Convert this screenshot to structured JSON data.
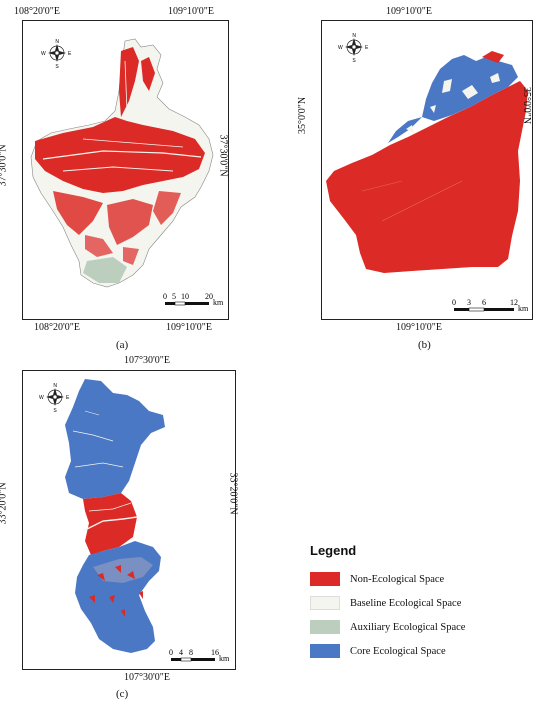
{
  "panels": {
    "a": {
      "label": "(a)",
      "top_lon": "109°10'0\"E",
      "bottom_left_lon": "108°20'0\"E",
      "bottom_right_lon": "109°10'0\"E",
      "top_left_lon": "108°20'0\"E",
      "left_lat": "37°30'0\"N",
      "right_lat": "37°30'0\"N",
      "scale": {
        "ticks": [
          "0",
          "5",
          "10",
          "20"
        ],
        "unit": "km"
      }
    },
    "b": {
      "label": "(b)",
      "top_lon": "109°10'0\"E",
      "bottom_lon": "109°10'0\"E",
      "left_lat": "35°0'0\"N",
      "right_lat": "35°0'0\"N",
      "scale": {
        "ticks": [
          "0",
          "3",
          "6",
          "12"
        ],
        "unit": "km"
      }
    },
    "c": {
      "label": "(c)",
      "top_lon": "107°30'0\"E",
      "bottom_lon": "107°30'0\"E",
      "left_lat": "33°20'0\"N",
      "right_lat": "33°20'0\"N",
      "scale": {
        "ticks": [
          "0",
          "4",
          "8",
          "16"
        ],
        "unit": "km"
      }
    }
  },
  "compass": {
    "n": "N",
    "s": "S",
    "e": "E",
    "w": "W"
  },
  "legend": {
    "title": "Legend",
    "items": [
      {
        "label": "Non-Ecological Space",
        "color": "#dc2a26"
      },
      {
        "label": "Baseline Ecological Space",
        "color": "#f4f5ee"
      },
      {
        "label": "Auxiliary Ecological Space",
        "color": "#bccfbe"
      },
      {
        "label": "Core Ecological Space",
        "color": "#4a78c4"
      }
    ]
  }
}
